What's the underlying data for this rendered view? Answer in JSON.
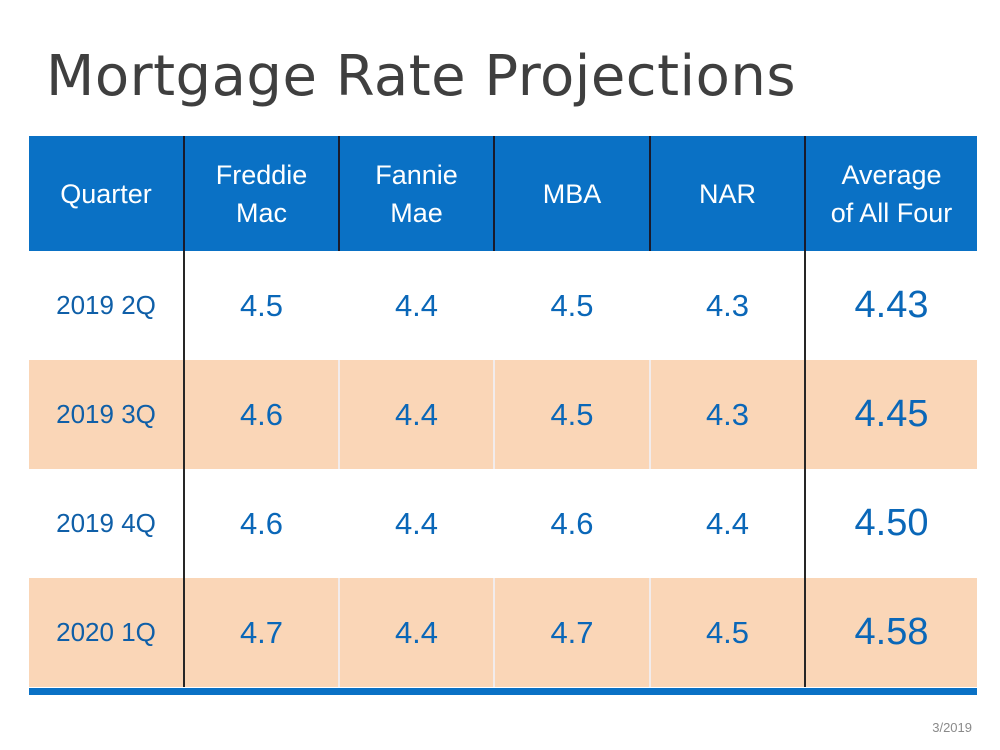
{
  "title": "Mortgage Rate Projections",
  "date_stamp": "3/2019",
  "colors": {
    "header_bg": "#0a71c5",
    "shaded_row_bg": "#fad6b7",
    "value_text": "#0a67b8",
    "title_text": "#3f3f3f"
  },
  "chart_data": {
    "type": "table",
    "title": "Mortgage Rate Projections",
    "columns": [
      {
        "line1": "Quarter",
        "line2": ""
      },
      {
        "line1": "Freddie",
        "line2": "Mac"
      },
      {
        "line1": "Fannie",
        "line2": "Mae"
      },
      {
        "line1": "MBA",
        "line2": ""
      },
      {
        "line1": "NAR",
        "line2": ""
      },
      {
        "line1": "Average",
        "line2": "of All Four"
      }
    ],
    "rows": [
      {
        "quarter": "2019 2Q",
        "freddie_mac": "4.5",
        "fannie_mae": "4.4",
        "mba": "4.5",
        "nar": "4.3",
        "average": "4.43"
      },
      {
        "quarter": "2019 3Q",
        "freddie_mac": "4.6",
        "fannie_mae": "4.4",
        "mba": "4.5",
        "nar": "4.3",
        "average": "4.45"
      },
      {
        "quarter": "2019 4Q",
        "freddie_mac": "4.6",
        "fannie_mae": "4.4",
        "mba": "4.6",
        "nar": "4.4",
        "average": "4.50"
      },
      {
        "quarter": "2020 1Q",
        "freddie_mac": "4.7",
        "fannie_mae": "4.4",
        "mba": "4.7",
        "nar": "4.5",
        "average": "4.58"
      }
    ]
  }
}
